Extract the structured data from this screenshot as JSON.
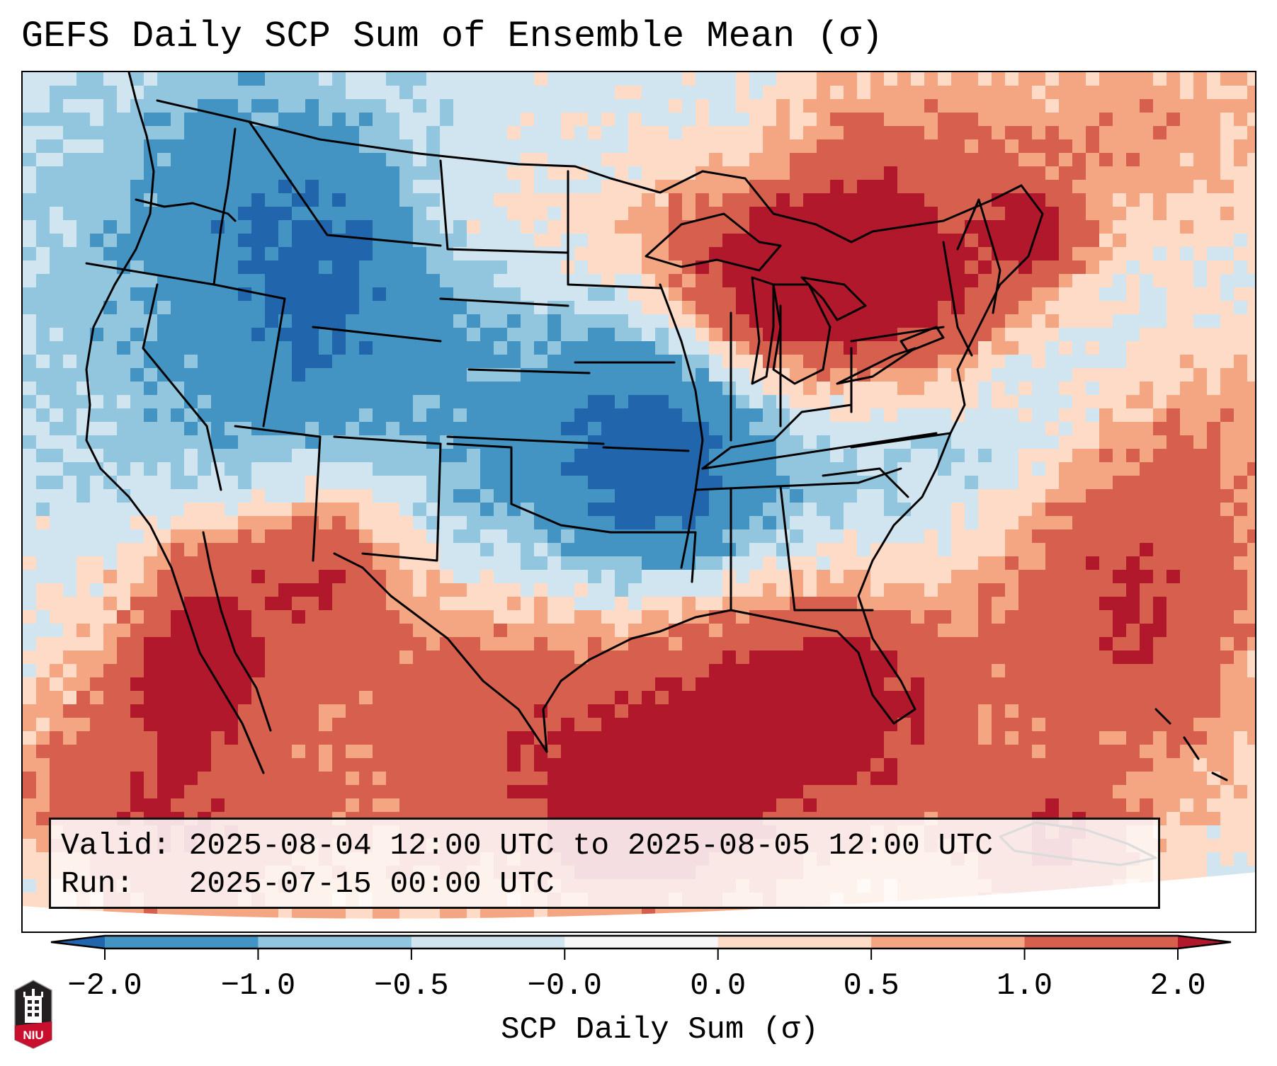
{
  "title": "GEFS Daily SCP Sum of Ensemble Mean (σ)",
  "legend": {
    "valid_line": "Valid: 2025-08-04 12:00 UTC to 2025-08-05 12:00 UTC",
    "run_line": "Run:   2025-07-15 00:00 UTC"
  },
  "colorbar": {
    "label": "SCP Daily Sum (σ)",
    "tick_labels": [
      "−2.0",
      "−1.0",
      "−0.5",
      "−0.0",
      "0.0",
      "0.5",
      "1.0",
      "2.0"
    ],
    "segments": [
      {
        "range": "< -2.0",
        "color": "#2166ac",
        "extend": "min"
      },
      {
        "range": "-2.0 to -1.0",
        "color": "#4393c3"
      },
      {
        "range": "-1.0 to -0.5",
        "color": "#92c5de"
      },
      {
        "range": "-0.5 to -0.0",
        "color": "#d1e5f0"
      },
      {
        "range": "-0.0 to 0.0",
        "color": "#f7f7f7"
      },
      {
        "range": "0.0 to 0.5",
        "color": "#fddbc7"
      },
      {
        "range": "0.5 to 1.0",
        "color": "#f4a582"
      },
      {
        "range": "1.0 to 2.0",
        "color": "#d6604d"
      },
      {
        "range": "> 2.0",
        "color": "#b2182b",
        "extend": "max"
      }
    ]
  },
  "map": {
    "field": "GEFS ensemble mean daily SCP sum standardized anomaly",
    "region": "Contiguous United States",
    "anomaly_regions": [
      {
        "area": "Pacific Northwest / Idaho",
        "level": "-1.0 to -0.5"
      },
      {
        "area": "Nebraska / Kansas / Oklahoma",
        "level": "-1.0 to -0.5"
      },
      {
        "area": "Central and western US",
        "level": "-0.5 to -0.0"
      },
      {
        "area": "Wisconsin / Michigan / Great Lakes",
        "level": "1.0 to 2.0"
      },
      {
        "area": "Maine / New England",
        "level": "> 2.0"
      },
      {
        "area": "Gulf of Mexico",
        "level": "1.0 to 2.0"
      },
      {
        "area": "Gulf of California / Baja",
        "level": "> 2.0"
      },
      {
        "area": "Arizona / Southwest",
        "level": "1.0 to 2.0"
      },
      {
        "area": "Western Atlantic",
        "level": "0.5 to 1.0"
      },
      {
        "area": "Caribbean / Cuba",
        "level": "> 2.0"
      }
    ]
  },
  "logo": {
    "text": "NIU"
  }
}
